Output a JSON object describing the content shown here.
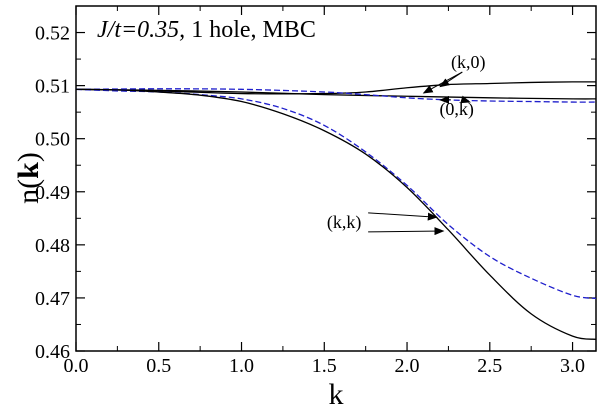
{
  "chart_data": {
    "type": "line",
    "title_parts": {
      "italic": "J/t=0.35,",
      "normal": " 1 hole, MBC"
    },
    "xlabel": "k",
    "ylabel_parts": {
      "normal": "n(",
      "bold": "k",
      "close": ")"
    },
    "xlim": [
      0.0,
      3.1416
    ],
    "ylim": [
      0.46,
      0.525
    ],
    "xticks": [
      "0.0",
      "0.5",
      "1.0",
      "1.5",
      "2.0",
      "2.5",
      "3.0"
    ],
    "xtick_values": [
      0.0,
      0.5,
      1.0,
      1.5,
      2.0,
      2.5,
      3.0
    ],
    "yticks": [
      "0.46",
      "0.47",
      "0.48",
      "0.49",
      "0.50",
      "0.51",
      "0.52"
    ],
    "ytick_values": [
      0.46,
      0.47,
      0.48,
      0.49,
      0.5,
      0.51,
      0.52
    ],
    "grid": false,
    "series": [
      {
        "color": "#000000",
        "dash": "solid",
        "x": [
          0.0,
          0.5,
          1.0,
          1.5,
          1.75,
          2.0,
          2.25,
          2.5,
          2.75,
          3.0,
          3.1416
        ],
        "y": [
          0.5093,
          0.509,
          0.5085,
          0.5085,
          0.5088,
          0.5096,
          0.5102,
          0.5104,
          0.5106,
          0.5107,
          0.5107
        ]
      },
      {
        "color": "#000000",
        "dash": "solid",
        "x": [
          0.0,
          0.5,
          1.0,
          1.5,
          2.0,
          2.5,
          3.0,
          3.1416
        ],
        "y": [
          0.5093,
          0.5091,
          0.5088,
          0.5083,
          0.508,
          0.5077,
          0.5075,
          0.5075
        ]
      },
      {
        "color": "#1f1fcc",
        "dash": "dashed",
        "x": [
          0.0,
          0.5,
          1.0,
          1.5,
          1.75,
          2.0,
          2.25,
          2.5,
          2.75,
          3.0,
          3.1416
        ],
        "y": [
          0.5093,
          0.5094,
          0.5093,
          0.5088,
          0.5083,
          0.5077,
          0.5073,
          0.5071,
          0.507,
          0.5069,
          0.5069
        ]
      },
      {
        "color": "#1f1fcc",
        "dash": "dashed",
        "x": [
          0.0,
          0.25,
          0.5,
          0.75,
          1.0,
          1.25,
          1.5,
          1.75,
          2.0,
          2.25,
          2.5,
          2.75,
          3.0,
          3.1416
        ],
        "y": [
          0.5093,
          0.509,
          0.5088,
          0.5083,
          0.5075,
          0.5057,
          0.5025,
          0.4975,
          0.4912,
          0.4838,
          0.4778,
          0.4737,
          0.4705,
          0.4699
        ]
      },
      {
        "color": "#000000",
        "dash": "solid",
        "x": [
          0.0,
          0.25,
          0.5,
          0.75,
          1.0,
          1.25,
          1.5,
          1.75,
          2.0,
          2.25,
          2.5,
          2.75,
          3.0,
          3.1416
        ],
        "y": [
          0.5093,
          0.5092,
          0.5088,
          0.5082,
          0.507,
          0.5047,
          0.5015,
          0.4971,
          0.4908,
          0.4828,
          0.4743,
          0.467,
          0.4628,
          0.4622
        ]
      }
    ],
    "annotations": [
      {
        "label": "(k,0)",
        "x": 2.37,
        "y": 0.5133,
        "arrows_to": [
          [
            2.1,
            0.5086
          ],
          [
            2.2,
            0.5098
          ]
        ]
      },
      {
        "label": "(0,k)",
        "x": 2.3,
        "y": 0.5045,
        "arrows_to": [
          [
            2.2,
            0.5073
          ],
          [
            2.38,
            0.5069
          ]
        ]
      },
      {
        "label": "(k,k)",
        "x": 1.62,
        "y": 0.4832,
        "arrows_to": [
          [
            2.18,
            0.4852
          ],
          [
            2.22,
            0.4826
          ]
        ]
      }
    ]
  }
}
